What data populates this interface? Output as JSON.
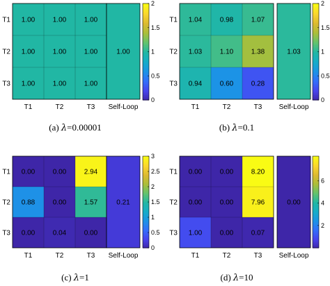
{
  "chart_data": [
    {
      "type": "heatmap",
      "caption_prefix": "(a)",
      "caption_lambda": "λ",
      "caption_value": "=0.00001",
      "x_labels": [
        "T1",
        "T2",
        "T3"
      ],
      "y_labels": [
        "T1",
        "T2",
        "T3"
      ],
      "matrix": [
        [
          1.0,
          1.0,
          1.0
        ],
        [
          1.0,
          1.0,
          1.0
        ],
        [
          1.0,
          1.0,
          1.0
        ]
      ],
      "cell_labels": [
        [
          "1.00",
          "1.00",
          "1.00"
        ],
        [
          "1.00",
          "1.00",
          "1.00"
        ],
        [
          "1.00",
          "1.00",
          "1.00"
        ]
      ],
      "self_loop_label": "Self-Loop",
      "self_loop_value": 1.0,
      "self_loop_text": "1.00",
      "color_range": [
        0,
        2
      ],
      "colorbar_ticks": [
        0,
        0.5,
        1,
        1.5,
        2
      ],
      "colorbar_tick_labels": [
        "0",
        "0.5",
        "1",
        "1.5",
        "2"
      ]
    },
    {
      "type": "heatmap",
      "caption_prefix": "(b)",
      "caption_lambda": "λ",
      "caption_value": "=0.1",
      "x_labels": [
        "T1",
        "T2",
        "T3"
      ],
      "y_labels": [
        "T1",
        "T2",
        "T3"
      ],
      "matrix": [
        [
          1.04,
          0.98,
          1.07
        ],
        [
          1.03,
          1.1,
          1.38
        ],
        [
          0.94,
          0.6,
          0.28
        ]
      ],
      "cell_labels": [
        [
          "1.04",
          "0.98",
          "1.07"
        ],
        [
          "1.03",
          "1.10",
          "1.38"
        ],
        [
          "0.94",
          "0.60",
          "0.28"
        ]
      ],
      "self_loop_label": "Self-Loop",
      "self_loop_value": 1.03,
      "self_loop_text": "1.03",
      "color_range": [
        0,
        2
      ],
      "colorbar_ticks": [
        0,
        0.5,
        1,
        1.5,
        2
      ],
      "colorbar_tick_labels": [
        "0",
        "0.5",
        "1",
        "1.5",
        "2"
      ]
    },
    {
      "type": "heatmap",
      "caption_prefix": "(c)",
      "caption_lambda": "λ",
      "caption_value": "=1",
      "x_labels": [
        "T1",
        "T2",
        "T3"
      ],
      "y_labels": [
        "T1",
        "T2",
        "T3"
      ],
      "matrix": [
        [
          0.0,
          0.0,
          2.94
        ],
        [
          0.88,
          0.0,
          1.57
        ],
        [
          0.0,
          0.04,
          0.0
        ]
      ],
      "cell_labels": [
        [
          "0.00",
          "0.00",
          "2.94"
        ],
        [
          "0.88",
          "0.00",
          "1.57"
        ],
        [
          "0.00",
          "0.04",
          "0.00"
        ]
      ],
      "self_loop_label": "Self-Loop",
      "self_loop_value": 0.21,
      "self_loop_text": "0.21",
      "color_range": [
        0,
        3
      ],
      "colorbar_ticks": [
        0,
        0.5,
        1,
        1.5,
        2,
        2.5,
        3
      ],
      "colorbar_tick_labels": [
        "0",
        "0.5",
        "1",
        "1.5",
        "2",
        "2.5",
        "3"
      ]
    },
    {
      "type": "heatmap",
      "caption_prefix": "(d)",
      "caption_lambda": "λ",
      "caption_value": "=10",
      "x_labels": [
        "T1",
        "T2",
        "T3"
      ],
      "y_labels": [
        "T1",
        "T2",
        "T3"
      ],
      "matrix": [
        [
          0.0,
          0.0,
          8.2
        ],
        [
          0.0,
          0.0,
          7.96
        ],
        [
          1.0,
          0.0,
          0.07
        ]
      ],
      "cell_labels": [
        [
          "0.00",
          "0.00",
          "8.20"
        ],
        [
          "0.00",
          "0.00",
          "7.96"
        ],
        [
          "1.00",
          "0.00",
          "0.07"
        ]
      ],
      "self_loop_label": "Self-Loop",
      "self_loop_value": 0.0,
      "self_loop_text": "0.00",
      "color_range": [
        0,
        8.2
      ],
      "colorbar_ticks": [
        6,
        4,
        2
      ],
      "colorbar_tick_labels": [
        "6",
        "4",
        "2"
      ]
    }
  ]
}
